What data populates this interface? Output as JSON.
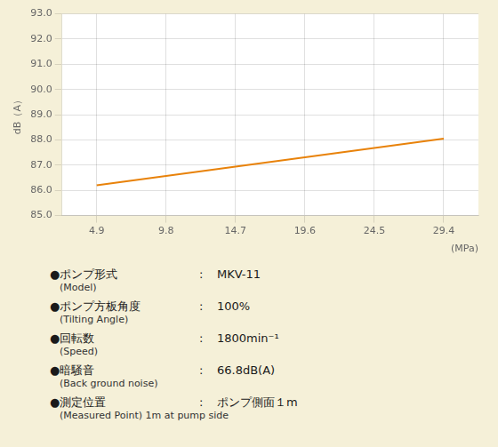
{
  "chart_data": {
    "type": "line",
    "x": [
      4.9,
      29.4
    ],
    "values": [
      86.2,
      88.05
    ],
    "color": "#e8820a",
    "x_label": "(MPa)",
    "y_label": "dB（A）",
    "xlim": [
      2.45,
      31.85
    ],
    "ylim": [
      85.0,
      93.0
    ],
    "xticks": [
      4.9,
      9.8,
      14.7,
      19.6,
      24.5,
      29.4
    ],
    "yticks": [
      {
        "value": 85,
        "label": "85.0"
      },
      {
        "value": 86,
        "label": "86.0"
      },
      {
        "value": 87,
        "label": "87.0"
      },
      {
        "value": 88,
        "label": "88.0"
      },
      {
        "value": 89,
        "label": "89.0"
      },
      {
        "value": 90,
        "label": "90.0"
      },
      {
        "value": 91,
        "label": "91.0"
      },
      {
        "value": 92,
        "label": "92.0"
      },
      {
        "value": 93,
        "label": "93.0"
      }
    ],
    "grid": true,
    "annotations": [
      [
        "●ポンプ形式",
        ":",
        "MKV-11",
        "(Model)"
      ],
      [
        "●ポンプ方板角度",
        ":",
        "100%",
        "(Tilting Angle)"
      ],
      [
        "●回転数",
        ":",
        "1800min⁻¹",
        "(Speed)"
      ],
      [
        "●暗騒音",
        ":",
        "66.8dB(A)",
        "(Back ground noise)"
      ],
      [
        "●測定位置",
        ":",
        "ポンプ側面１m",
        "(Measured Point) 1m at pump side"
      ]
    ]
  }
}
